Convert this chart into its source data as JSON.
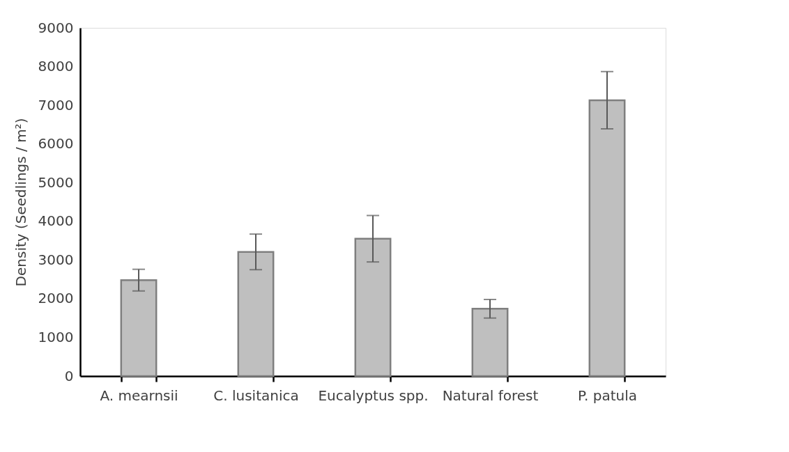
{
  "chart_data": {
    "type": "bar",
    "ylabel": "Density (Seedlings / m²)",
    "categories": [
      "A. mearnsii",
      "C. lusitanica",
      "Eucalyptus spp.",
      "Natural forest",
      "P. patula"
    ],
    "series": [
      {
        "color": "#bfbfbf",
        "values": [
          2480,
          3210,
          3550,
          1740,
          7130
        ],
        "errors": [
          280,
          460,
          600,
          240,
          740
        ]
      }
    ],
    "ylim": [
      0,
      9000
    ],
    "yticks": [
      0,
      1000,
      2000,
      3000,
      4000,
      5000,
      6000,
      7000,
      8000,
      9000
    ],
    "grid": false
  }
}
